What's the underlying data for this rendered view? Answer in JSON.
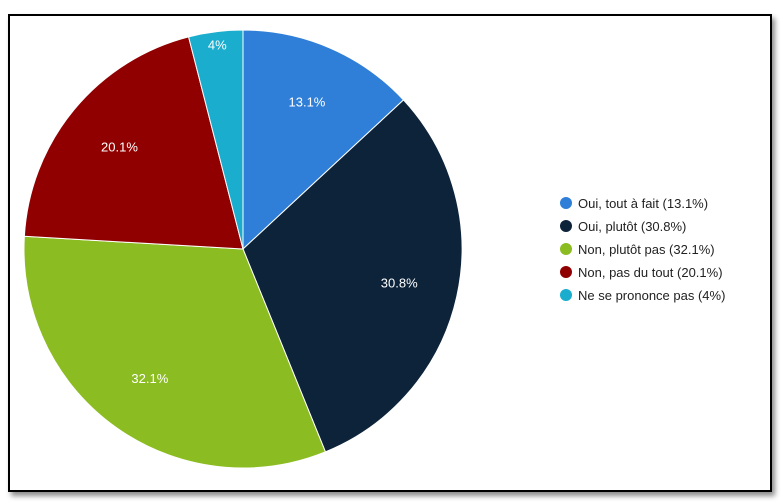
{
  "chart_data": {
    "type": "pie",
    "title": "",
    "slices": [
      {
        "name": "Oui, tout à fait",
        "value": 13.1,
        "label": "13.1%",
        "legend": "Oui, tout à fait (13.1%)",
        "color": "#2f7ed8"
      },
      {
        "name": "Oui, plutôt",
        "value": 30.8,
        "label": "30.8%",
        "legend": "Oui, plutôt (30.8%)",
        "color": "#0d233a"
      },
      {
        "name": "Non, plutôt pas",
        "value": 32.1,
        "label": "32.1%",
        "legend": "Non, plutôt pas (32.1%)",
        "color": "#8bbc21"
      },
      {
        "name": "Non, pas du tout",
        "value": 20.1,
        "label": "20.1%",
        "legend": "Non, pas du tout (20.1%)",
        "color": "#910000"
      },
      {
        "name": "Ne se prononce pas",
        "value": 4,
        "label": "4%",
        "legend": "Ne se prononce pas (4%)",
        "color": "#1aadce"
      }
    ],
    "legend_position": "right",
    "start_angle": "12 o'clock, clockwise"
  }
}
